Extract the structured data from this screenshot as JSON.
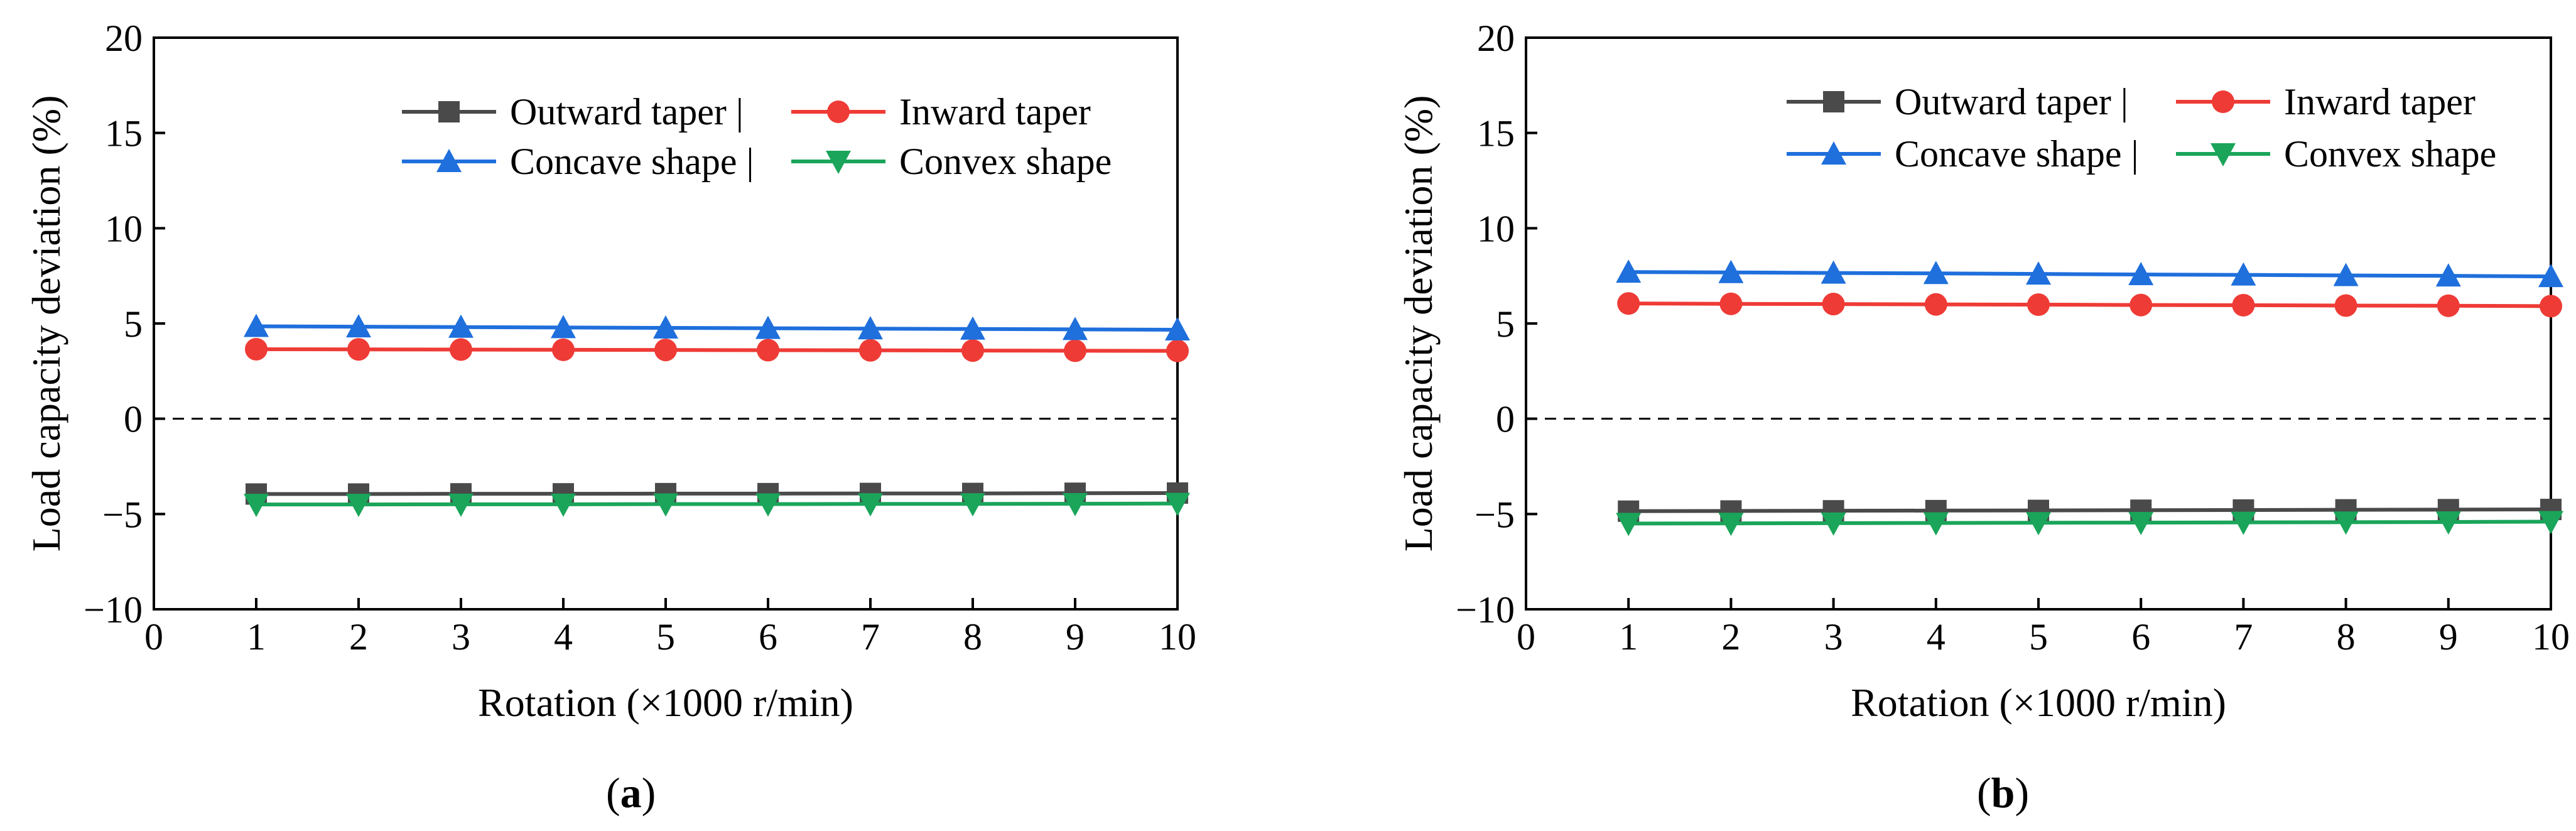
{
  "chart_data": [
    {
      "type": "line",
      "panel_label": {
        "open": "(",
        "letter": "a",
        "close": ")"
      },
      "xlabel": "Rotation (×1000 r/min)",
      "ylabel": "Load capacity deviation (%)",
      "xlim": [
        0,
        10
      ],
      "ylim": [
        -10,
        20
      ],
      "xticks": [
        "0",
        "1",
        "2",
        "3",
        "4",
        "5",
        "6",
        "7",
        "8",
        "9",
        "10"
      ],
      "yticks": [
        "−10",
        "−5",
        "0",
        "5",
        "10",
        "15",
        "20"
      ],
      "reference_line": 0,
      "x": [
        1,
        2,
        3,
        4,
        5,
        6,
        7,
        8,
        9,
        10
      ],
      "series": [
        {
          "name": "Outward taper |",
          "color": "#4a4a4a",
          "marker": "square",
          "values": [
            -3.95,
            -3.95,
            -3.94,
            -3.94,
            -3.93,
            -3.93,
            -3.92,
            -3.92,
            -3.91,
            -3.9
          ]
        },
        {
          "name": "Inward taper",
          "color": "#ef3b36",
          "marker": "circle",
          "values": [
            3.65,
            3.64,
            3.63,
            3.62,
            3.61,
            3.6,
            3.59,
            3.58,
            3.57,
            3.56
          ]
        },
        {
          "name": "Concave shape |",
          "color": "#1f6fdc",
          "marker": "triangle-up",
          "values": [
            4.85,
            4.83,
            4.81,
            4.79,
            4.77,
            4.75,
            4.73,
            4.71,
            4.69,
            4.67
          ]
        },
        {
          "name": "Convex shape",
          "color": "#1aa55a",
          "marker": "triangle-down",
          "values": [
            -4.5,
            -4.5,
            -4.49,
            -4.49,
            -4.48,
            -4.48,
            -4.47,
            -4.47,
            -4.46,
            -4.45
          ]
        }
      ]
    },
    {
      "type": "line",
      "panel_label": {
        "open": "(",
        "letter": "b",
        "close": ")"
      },
      "xlabel": "Rotation (×1000 r/min)",
      "ylabel": "Load capacity deviation (%)",
      "xlim": [
        0,
        10
      ],
      "ylim": [
        -10,
        20
      ],
      "xticks": [
        "0",
        "1",
        "2",
        "3",
        "4",
        "5",
        "6",
        "7",
        "8",
        "9",
        "10"
      ],
      "yticks": [
        "−10",
        "−5",
        "0",
        "5",
        "10",
        "15",
        "20"
      ],
      "reference_line": 0,
      "x": [
        1,
        2,
        3,
        4,
        5,
        6,
        7,
        8,
        9,
        10
      ],
      "series": [
        {
          "name": "Outward taper |",
          "color": "#4a4a4a",
          "marker": "square",
          "values": [
            -4.85,
            -4.84,
            -4.83,
            -4.82,
            -4.81,
            -4.8,
            -4.79,
            -4.78,
            -4.77,
            -4.76
          ]
        },
        {
          "name": "Inward taper",
          "color": "#ef3b36",
          "marker": "circle",
          "values": [
            6.05,
            6.03,
            6.02,
            6.0,
            5.99,
            5.97,
            5.96,
            5.94,
            5.93,
            5.91
          ]
        },
        {
          "name": "Concave shape |",
          "color": "#1f6fdc",
          "marker": "triangle-up",
          "values": [
            7.7,
            7.68,
            7.65,
            7.63,
            7.6,
            7.57,
            7.55,
            7.52,
            7.5,
            7.47
          ]
        },
        {
          "name": "Convex shape",
          "color": "#1aa55a",
          "marker": "triangle-down",
          "values": [
            -5.5,
            -5.49,
            -5.48,
            -5.47,
            -5.46,
            -5.45,
            -5.44,
            -5.43,
            -5.42,
            -5.4
          ]
        }
      ]
    }
  ]
}
